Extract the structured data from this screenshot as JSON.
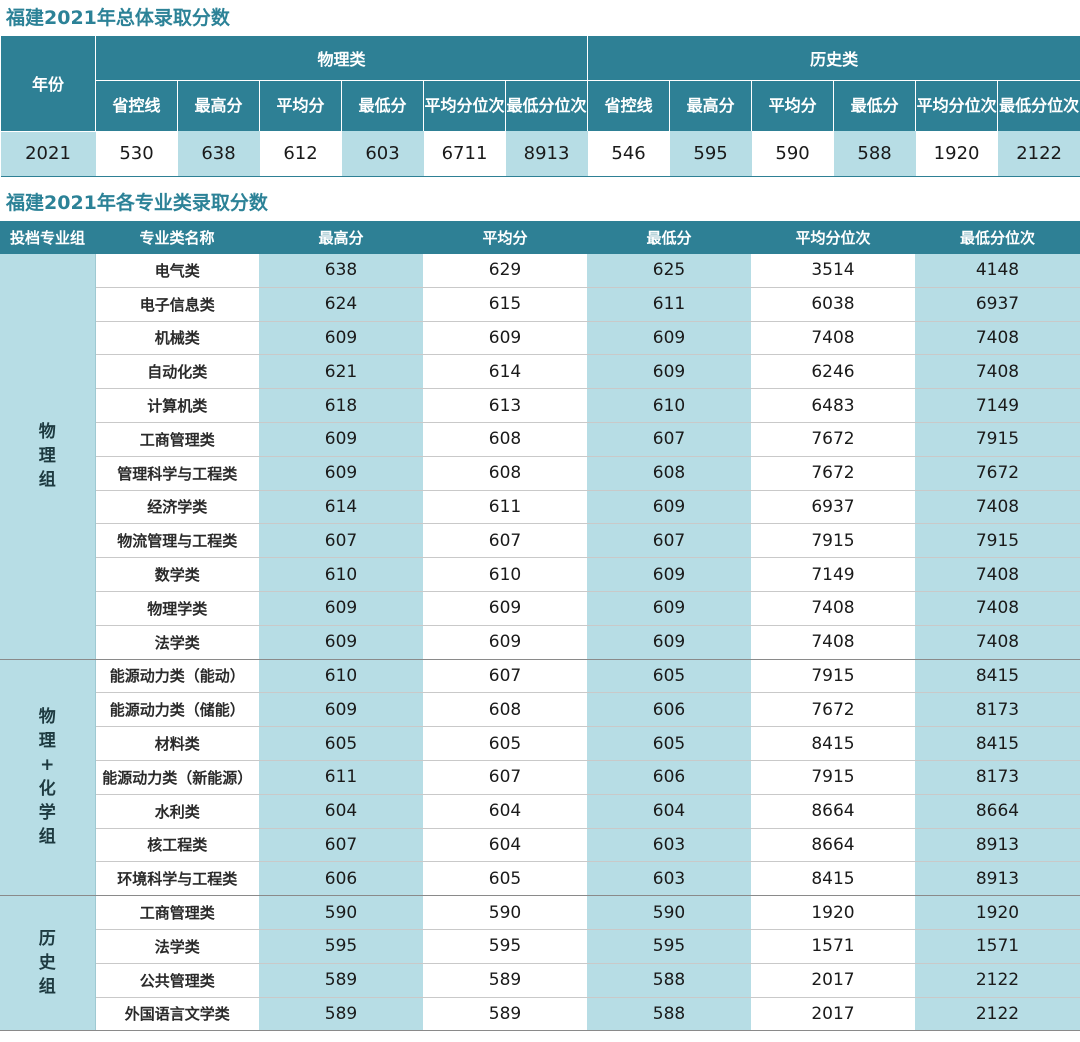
{
  "summary": {
    "title": "福建2021年总体录取分数",
    "year_header": "年份",
    "groups": [
      "物理类",
      "历史类"
    ],
    "sub_headers": [
      "省控线",
      "最高分",
      "平均分",
      "最低分",
      "平均分位次",
      "最低分位次"
    ],
    "row": {
      "year": "2021",
      "physics": [
        "530",
        "638",
        "612",
        "603",
        "6711",
        "8913"
      ],
      "history": [
        "546",
        "595",
        "590",
        "588",
        "1920",
        "2122"
      ]
    }
  },
  "majors": {
    "title": "福建2021年各专业类录取分数",
    "headers": [
      "投档专业组",
      "专业类名称",
      "最高分",
      "平均分",
      "最低分",
      "平均分位次",
      "最低分位次"
    ],
    "groups": [
      {
        "name_chars": [
          "物",
          "理",
          "组"
        ],
        "rows": [
          [
            "电气类",
            "638",
            "629",
            "625",
            "3514",
            "4148"
          ],
          [
            "电子信息类",
            "624",
            "615",
            "611",
            "6038",
            "6937"
          ],
          [
            "机械类",
            "609",
            "609",
            "609",
            "7408",
            "7408"
          ],
          [
            "自动化类",
            "621",
            "614",
            "609",
            "6246",
            "7408"
          ],
          [
            "计算机类",
            "618",
            "613",
            "610",
            "6483",
            "7149"
          ],
          [
            "工商管理类",
            "609",
            "608",
            "607",
            "7672",
            "7915"
          ],
          [
            "管理科学与工程类",
            "609",
            "608",
            "608",
            "7672",
            "7672"
          ],
          [
            "经济学类",
            "614",
            "611",
            "609",
            "6937",
            "7408"
          ],
          [
            "物流管理与工程类",
            "607",
            "607",
            "607",
            "7915",
            "7915"
          ],
          [
            "数学类",
            "610",
            "610",
            "609",
            "7149",
            "7408"
          ],
          [
            "物理学类",
            "609",
            "609",
            "609",
            "7408",
            "7408"
          ],
          [
            "法学类",
            "609",
            "609",
            "609",
            "7408",
            "7408"
          ]
        ]
      },
      {
        "name_chars": [
          "物",
          "理",
          "+",
          "化",
          "学",
          "组"
        ],
        "rows": [
          [
            "能源动力类（能动）",
            "610",
            "607",
            "605",
            "7915",
            "8415"
          ],
          [
            "能源动力类（储能）",
            "609",
            "608",
            "606",
            "7672",
            "8173"
          ],
          [
            "材料类",
            "605",
            "605",
            "605",
            "8415",
            "8415"
          ],
          [
            "能源动力类（新能源）",
            "611",
            "607",
            "606",
            "7915",
            "8173"
          ],
          [
            "水利类",
            "604",
            "604",
            "604",
            "8664",
            "8664"
          ],
          [
            "核工程类",
            "607",
            "604",
            "603",
            "8664",
            "8913"
          ],
          [
            "环境科学与工程类",
            "606",
            "605",
            "603",
            "8415",
            "8913"
          ]
        ]
      },
      {
        "name_chars": [
          "历",
          "史",
          "组"
        ],
        "rows": [
          [
            "工商管理类",
            "590",
            "590",
            "590",
            "1920",
            "1920"
          ],
          [
            "法学类",
            "595",
            "595",
            "595",
            "1571",
            "1571"
          ],
          [
            "公共管理类",
            "589",
            "589",
            "588",
            "2017",
            "2122"
          ],
          [
            "外国语言文学类",
            "589",
            "589",
            "588",
            "2017",
            "2122"
          ]
        ]
      }
    ]
  }
}
